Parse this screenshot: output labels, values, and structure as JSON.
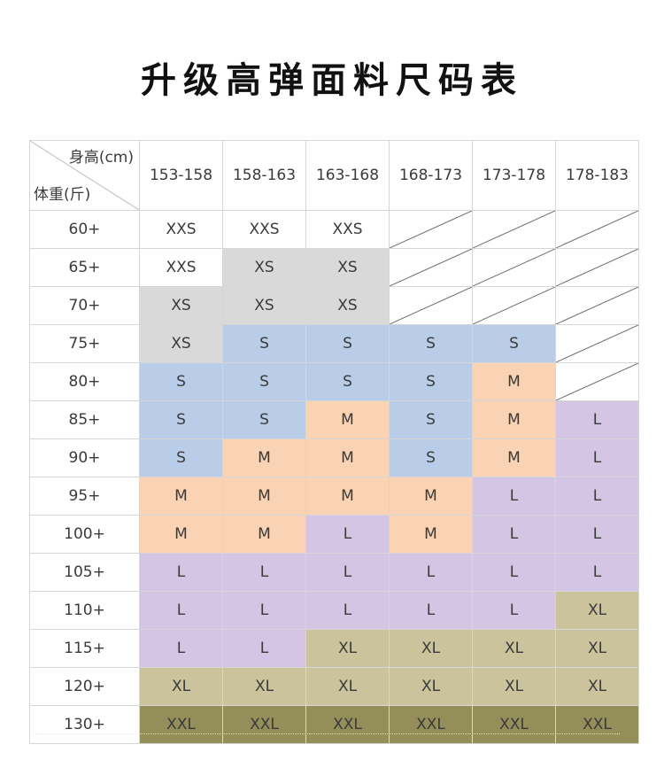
{
  "title": "升级高弹面料尺码表",
  "corner": {
    "height_label": "身高(cm)",
    "weight_label": "体重(斤)"
  },
  "heights": [
    "153-158",
    "158-163",
    "163-168",
    "168-173",
    "173-178",
    "178-183"
  ],
  "rows": [
    {
      "weight": "60+",
      "sizes": [
        "XXS",
        "XXS",
        "XXS",
        "",
        "",
        ""
      ]
    },
    {
      "weight": "65+",
      "sizes": [
        "XXS",
        "XS",
        "XS",
        "",
        "",
        ""
      ]
    },
    {
      "weight": "70+",
      "sizes": [
        "XS",
        "XS",
        "XS",
        "",
        "",
        ""
      ]
    },
    {
      "weight": "75+",
      "sizes": [
        "XS",
        "S",
        "S",
        "S",
        "S",
        ""
      ]
    },
    {
      "weight": "80+",
      "sizes": [
        "S",
        "S",
        "S",
        "S",
        "M",
        ""
      ]
    },
    {
      "weight": "85+",
      "sizes": [
        "S",
        "S",
        "M",
        "S",
        "M",
        "L"
      ]
    },
    {
      "weight": "90+",
      "sizes": [
        "S",
        "M",
        "M",
        "S",
        "M",
        "L"
      ]
    },
    {
      "weight": "95+",
      "sizes": [
        "M",
        "M",
        "M",
        "M",
        "L",
        "L"
      ]
    },
    {
      "weight": "100+",
      "sizes": [
        "M",
        "M",
        "L",
        "M",
        "L",
        "L"
      ]
    },
    {
      "weight": "105+",
      "sizes": [
        "L",
        "L",
        "L",
        "L",
        "L",
        "L"
      ]
    },
    {
      "weight": "110+",
      "sizes": [
        "L",
        "L",
        "L",
        "L",
        "L",
        "XL"
      ]
    },
    {
      "weight": "115+",
      "sizes": [
        "L",
        "L",
        "XL",
        "XL",
        "XL",
        "XL"
      ]
    },
    {
      "weight": "120+",
      "sizes": [
        "XL",
        "XL",
        "XL",
        "XL",
        "XL",
        "XL"
      ]
    },
    {
      "weight": "130+",
      "sizes": [
        "XXL",
        "XXL",
        "XXL",
        "XXL",
        "XXL",
        "XXL"
      ]
    }
  ],
  "colors": {
    "XXS": "#ffffff",
    "XS": "#d9d9d9",
    "S": "#b9cde8",
    "M": "#f9d3b3",
    "L": "#d3c5e3",
    "XL": "#cac39c",
    "XXL": "#948e5a"
  }
}
